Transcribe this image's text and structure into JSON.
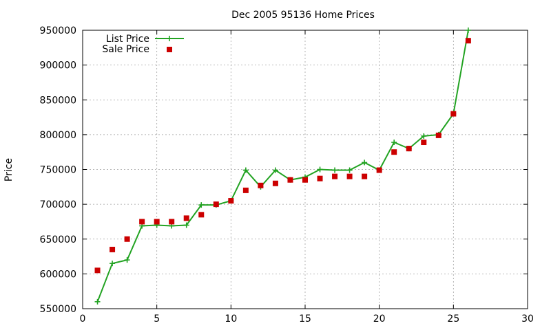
{
  "chart_data": {
    "type": "line",
    "title": "Dec 2005 95136 Home Prices",
    "xlabel": "",
    "ylabel": "Price",
    "xlim": [
      0,
      30
    ],
    "ylim": [
      550000,
      950000
    ],
    "x_ticks": [
      0,
      5,
      10,
      15,
      20,
      25,
      30
    ],
    "y_ticks": [
      550000,
      600000,
      650000,
      700000,
      750000,
      800000,
      850000,
      900000,
      950000
    ],
    "grid": true,
    "legend_position": "top-left",
    "series": [
      {
        "name": "List Price",
        "style": "lines+points",
        "color": "#22a322",
        "x": [
          1,
          2,
          3,
          4,
          5,
          6,
          7,
          8,
          9,
          10,
          11,
          12,
          13,
          14,
          15,
          16,
          17,
          18,
          19,
          20,
          21,
          22,
          23,
          24,
          25,
          26
        ],
        "y": [
          560000,
          615000,
          620000,
          669000,
          670000,
          669000,
          670000,
          699000,
          699000,
          705000,
          749000,
          725000,
          749000,
          735000,
          739000,
          750000,
          749000,
          749000,
          760000,
          749000,
          789000,
          780000,
          798000,
          800000,
          830000,
          950000
        ]
      },
      {
        "name": "Sale Price",
        "style": "points",
        "color": "#cc0000",
        "x": [
          1,
          2,
          3,
          4,
          5,
          6,
          7,
          8,
          9,
          10,
          11,
          12,
          13,
          14,
          15,
          16,
          17,
          18,
          19,
          20,
          21,
          22,
          23,
          24,
          25,
          26
        ],
        "y": [
          605000,
          635000,
          650000,
          675000,
          675000,
          675000,
          680000,
          685000,
          700000,
          705000,
          720000,
          727000,
          730000,
          735000,
          735000,
          737000,
          740000,
          740000,
          740000,
          749000,
          775000,
          780000,
          789000,
          799000,
          830000,
          935000
        ]
      }
    ]
  }
}
